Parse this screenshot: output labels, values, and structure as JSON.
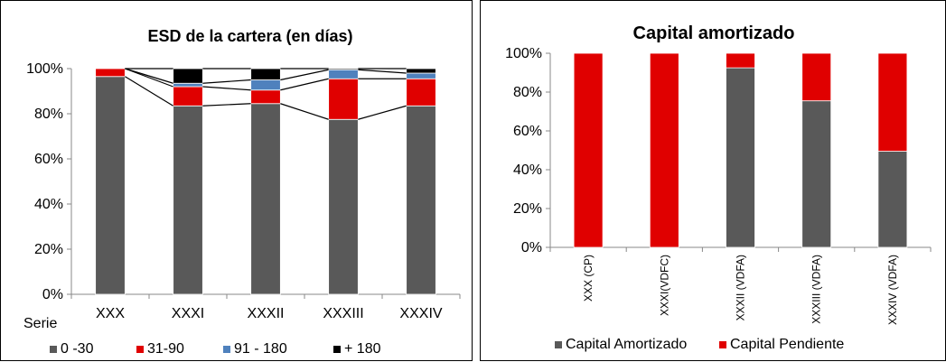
{
  "chart_data": [
    {
      "type": "bar",
      "stacked": true,
      "title": "ESD  de la cartera (en días)",
      "xlabel": "Serie",
      "ylabel": "",
      "categories": [
        "XXX",
        "XXXI",
        "XXXII",
        "XXXIII",
        "XXXIV"
      ],
      "ylim": [
        0,
        100
      ],
      "yticks": [
        "0%",
        "20%",
        "40%",
        "60%",
        "80%",
        "100%"
      ],
      "series_lines": true,
      "series": [
        {
          "name": "0 -30",
          "color": "#595959",
          "values": [
            96.5,
            83.5,
            84.5,
            77.5,
            83.5
          ]
        },
        {
          "name": "31-90",
          "color": "#e00000",
          "values": [
            3.5,
            8.5,
            6.0,
            18.0,
            12.0
          ]
        },
        {
          "name": "91 - 180",
          "color": "#4f81bd",
          "values": [
            0,
            1.5,
            4.5,
            4.0,
            2.5
          ]
        },
        {
          "name": "+ 180",
          "color": "#000000",
          "values": [
            0,
            6.5,
            5.0,
            0.5,
            2.0
          ]
        }
      ],
      "legend_position": "bottom"
    },
    {
      "type": "bar",
      "stacked": true,
      "title": "Capital amortizado",
      "xlabel": "",
      "ylabel": "",
      "categories": [
        "XXX (CP)",
        "XXXI(VDFC)",
        "XXXII (VDFA)",
        "XXXIII (VDFA)",
        "XXXIV (VDFA)"
      ],
      "ylim": [
        0,
        100
      ],
      "yticks": [
        "0%",
        "20%",
        "40%",
        "60%",
        "80%",
        "100%"
      ],
      "series": [
        {
          "name": "Capital Amortizado",
          "color": "#595959",
          "values": [
            0,
            0,
            92.5,
            75.5,
            49.5
          ]
        },
        {
          "name": "Capital Pendiente",
          "color": "#e00000",
          "values": [
            100,
            100,
            7.5,
            24.5,
            50.5
          ]
        }
      ],
      "legend_position": "bottom"
    }
  ]
}
